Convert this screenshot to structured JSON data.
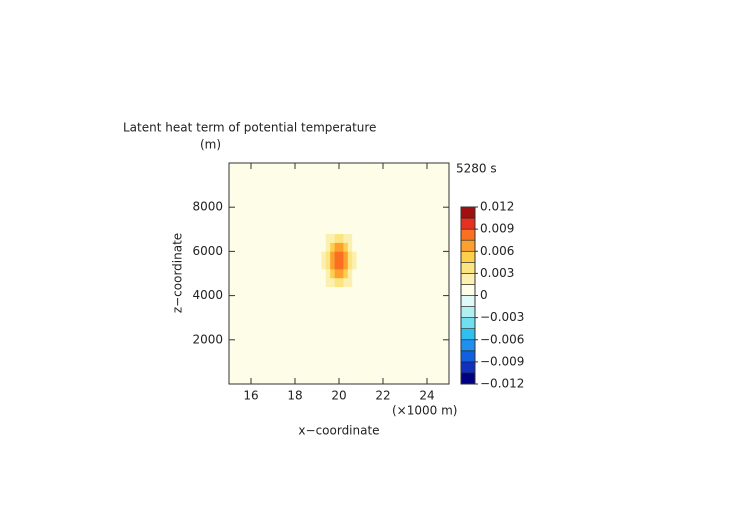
{
  "chart_data": {
    "type": "heatmap",
    "title": "Latent heat term of potential temperature",
    "subtitle": "5280 s",
    "x_label": "x−coordinate",
    "x_unit": "(×1000 m)",
    "y_label": "z−coordinate",
    "y_unit": "(m)",
    "xlim": [
      15,
      25
    ],
    "xticks": [
      16,
      18,
      20,
      22,
      24
    ],
    "ylim": [
      0,
      10000
    ],
    "yticks": [
      2000,
      4000,
      6000,
      8000
    ],
    "x": [
      18.9,
      19.1,
      19.3,
      19.5,
      19.7,
      19.9,
      20.1,
      20.3,
      20.5,
      20.7,
      20.9,
      21.1
    ],
    "y": [
      4200,
      4600,
      5000,
      5400,
      5800,
      6200,
      6600,
      7000
    ],
    "values": [
      [
        0,
        0.0001,
        0.0003,
        0.0006,
        0.001,
        0.0013,
        0.0013,
        0.001,
        0.0006,
        0.0003,
        0.0001,
        0
      ],
      [
        0.0001,
        0.0002,
        0.0007,
        0.0015,
        0.0026,
        0.0034,
        0.0034,
        0.0026,
        0.0015,
        0.0007,
        0.0002,
        0.0001
      ],
      [
        0.0001,
        0.0005,
        0.0013,
        0.0029,
        0.0049,
        0.0064,
        0.0064,
        0.0049,
        0.0029,
        0.0013,
        0.0005,
        0.0001
      ],
      [
        0.0002,
        0.0006,
        0.0018,
        0.004,
        0.0068,
        0.0088,
        0.0088,
        0.0068,
        0.004,
        0.0018,
        0.0006,
        0.0002
      ],
      [
        0.0002,
        0.0006,
        0.0018,
        0.004,
        0.0068,
        0.0088,
        0.0088,
        0.0068,
        0.004,
        0.0018,
        0.0006,
        0.0002
      ],
      [
        0.0001,
        0.0005,
        0.0013,
        0.0029,
        0.0049,
        0.0064,
        0.0064,
        0.0049,
        0.0029,
        0.0013,
        0.0005,
        0.0001
      ],
      [
        0.0001,
        0.0002,
        0.0007,
        0.0015,
        0.0026,
        0.0034,
        0.0034,
        0.0026,
        0.0015,
        0.0007,
        0.0002,
        0.0001
      ],
      [
        0,
        0.0001,
        0.0003,
        0.0006,
        0.001,
        0.0013,
        0.0013,
        0.001,
        0.0006,
        0.0003,
        0.0001,
        0
      ]
    ],
    "levels": [
      -0.012,
      -0.0105,
      -0.009,
      -0.0075,
      -0.006,
      -0.0045,
      -0.003,
      -0.0015,
      0,
      0.0015,
      0.003,
      0.0045,
      0.006,
      0.0075,
      0.009,
      0.0105,
      0.012
    ],
    "colors": [
      "#000080",
      "#1030c0",
      "#1060e0",
      "#2090f0",
      "#30c0f0",
      "#70e0f0",
      "#b0f0f0",
      "#e0fafa",
      "#fdfde8",
      "#fbf0b0",
      "#fbe580",
      "#fcd04a",
      "#fca030",
      "#f87020",
      "#e83020",
      "#a01010"
    ],
    "cticks": [
      {
        "value": -0.012,
        "label": "−0.012"
      },
      {
        "value": -0.009,
        "label": "−0.009"
      },
      {
        "value": -0.006,
        "label": "−0.006"
      },
      {
        "value": -0.003,
        "label": "−0.003"
      },
      0,
      0.003,
      0.006,
      0.009,
      0.012
    ]
  }
}
